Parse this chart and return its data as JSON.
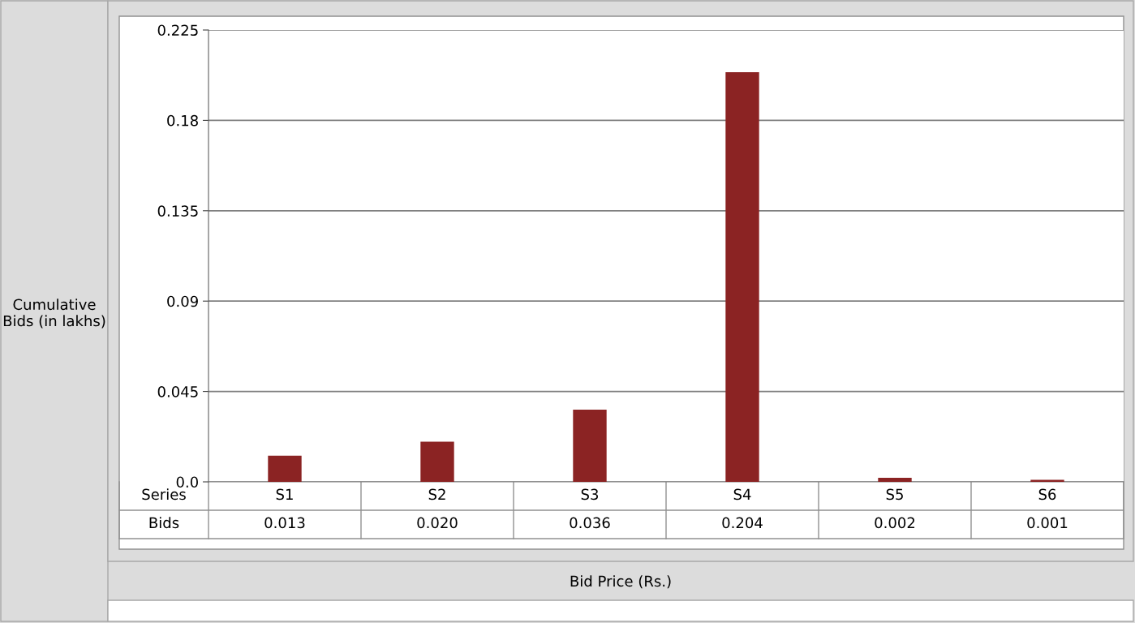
{
  "chart_data": {
    "type": "bar",
    "ylabel": "Cumulative Bids (in lakhs)",
    "categories": [
      "S1",
      "S2",
      "S3",
      "S4",
      "S5",
      "S6"
    ],
    "series": [
      {
        "name": "Bids",
        "color": "#8b2323",
        "values": [
          0.013,
          0.02,
          0.036,
          0.204,
          0.002,
          0.001
        ],
        "value_labels": [
          "0.013",
          "0.020",
          "0.036",
          "0.204",
          "0.002",
          "0.001"
        ]
      }
    ],
    "annotations": [
      "Series",
      "Bid Price (Rs.)"
    ],
    "ylim": [
      0,
      0.225
    ],
    "yticks": [
      {
        "value": 0,
        "label": "0.0"
      },
      0.045,
      0.09,
      0.135,
      0.18,
      0.225
    ],
    "grid": "y"
  }
}
